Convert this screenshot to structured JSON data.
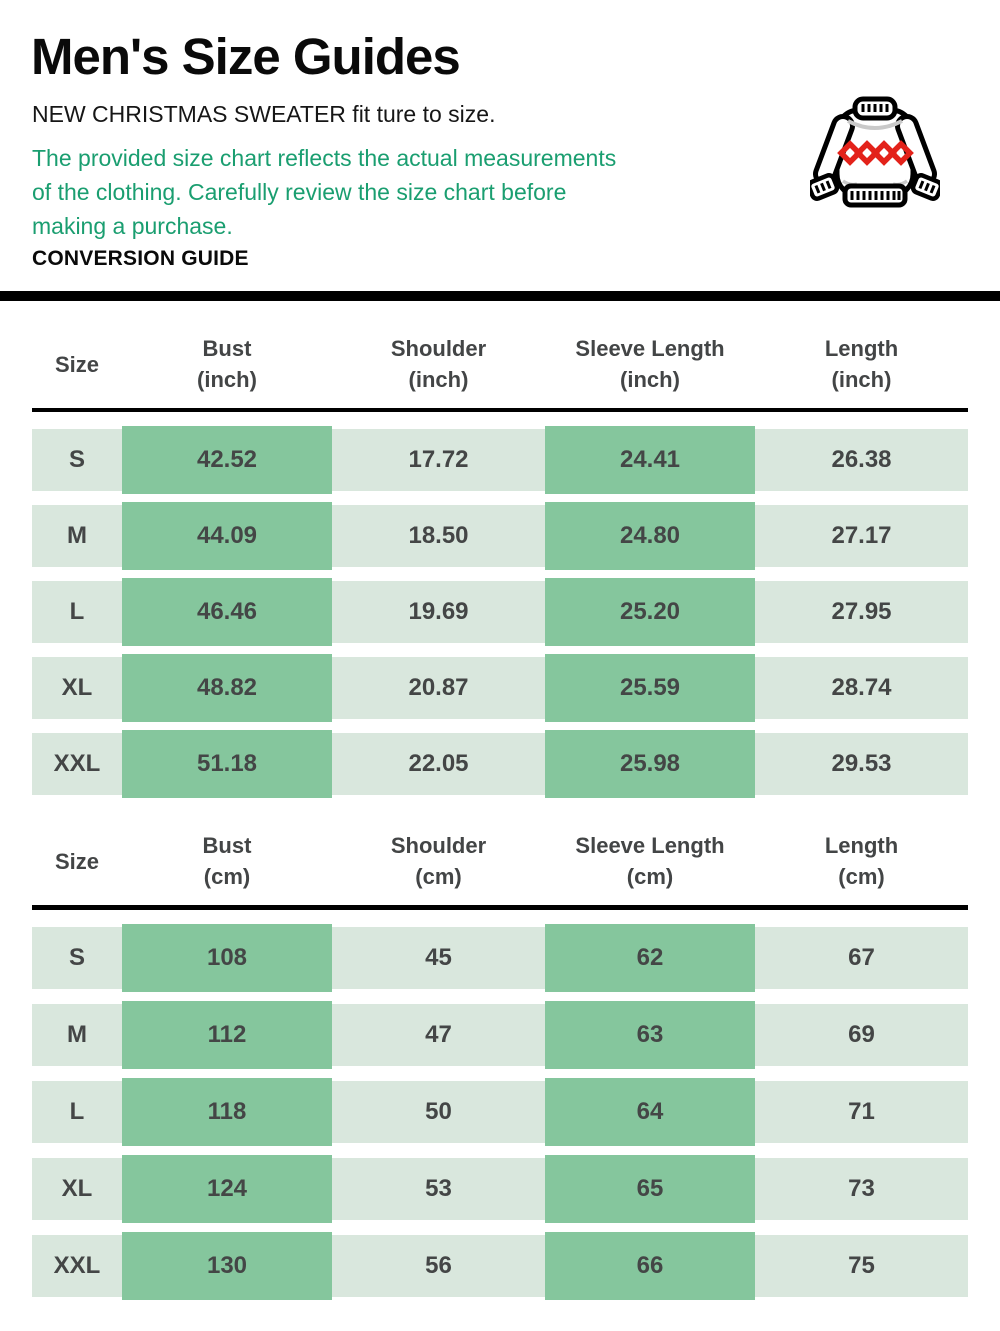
{
  "header": {
    "title": "Men's Size Guides",
    "subtitle": "NEW CHRISTMAS SWEATER fit ture to size.",
    "note_lines": [
      "The provided size chart reflects the actual measurements",
      "of the clothing. Carefully review the size chart before",
      "making a purchase."
    ],
    "section_label": "CONVERSION GUIDE"
  },
  "icon": {
    "name": "christmas-sweater-icon",
    "pattern_color": "#e3221a",
    "outline_color": "#000000"
  },
  "colors": {
    "accent_green_text": "#1a9e70",
    "cell_light_green": "#d9e7dd",
    "cell_dark_green": "#85c69d",
    "cell_text": "#444646",
    "divider_black": "#000000"
  },
  "tables": [
    {
      "unit": "inch",
      "headers": [
        {
          "label": "Size",
          "unit": ""
        },
        {
          "label": "Bust",
          "unit": "(inch)"
        },
        {
          "label": "Shoulder",
          "unit": "(inch)"
        },
        {
          "label": "Sleeve Length",
          "unit": "(inch)"
        },
        {
          "label": "Length",
          "unit": "(inch)"
        }
      ],
      "rows": [
        {
          "size": "S",
          "values": [
            "42.52",
            "17.72",
            "24.41",
            "26.38"
          ]
        },
        {
          "size": "M",
          "values": [
            "44.09",
            "18.50",
            "24.80",
            "27.17"
          ]
        },
        {
          "size": "L",
          "values": [
            "46.46",
            "19.69",
            "25.20",
            "27.95"
          ]
        },
        {
          "size": "XL",
          "values": [
            "48.82",
            "20.87",
            "25.59",
            "28.74"
          ]
        },
        {
          "size": "XXL",
          "values": [
            "51.18",
            "22.05",
            "25.98",
            "29.53"
          ]
        }
      ]
    },
    {
      "unit": "cm",
      "headers": [
        {
          "label": "Size",
          "unit": ""
        },
        {
          "label": "Bust",
          "unit": "(cm)"
        },
        {
          "label": "Shoulder",
          "unit": "(cm)"
        },
        {
          "label": "Sleeve Length",
          "unit": "(cm)"
        },
        {
          "label": "Length",
          "unit": "(cm)"
        }
      ],
      "rows": [
        {
          "size": "S",
          "values": [
            "108",
            "45",
            "62",
            "67"
          ]
        },
        {
          "size": "M",
          "values": [
            "112",
            "47",
            "63",
            "69"
          ]
        },
        {
          "size": "L",
          "values": [
            "118",
            "50",
            "64",
            "71"
          ]
        },
        {
          "size": "XL",
          "values": [
            "124",
            "53",
            "65",
            "73"
          ]
        },
        {
          "size": "XXL",
          "values": [
            "130",
            "56",
            "66",
            "75"
          ]
        }
      ]
    }
  ]
}
